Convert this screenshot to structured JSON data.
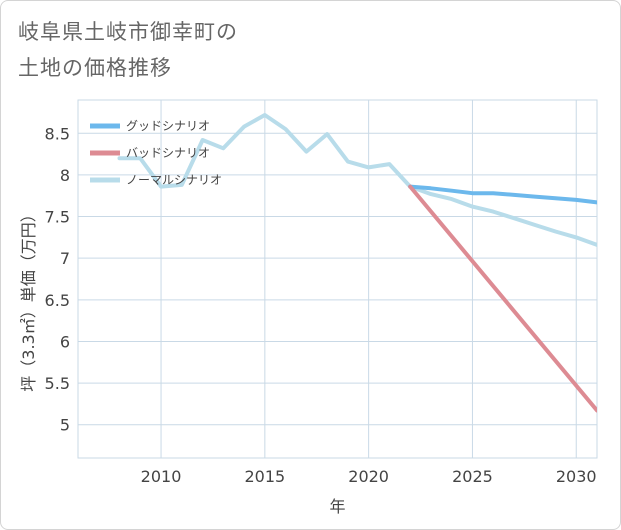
{
  "title_lines": [
    "岐阜県土岐市御幸町の",
    "土地の価格推移"
  ],
  "chart_data": {
    "type": "line",
    "xlabel": "年",
    "ylabel": "坪（3.3㎡）単価（万円）",
    "xlim": [
      2006,
      2031
    ],
    "ylim": [
      4.6,
      8.9
    ],
    "xticks": [
      2010,
      2015,
      2020,
      2025,
      2030
    ],
    "yticks": [
      5,
      5.5,
      6,
      6.5,
      7,
      7.5,
      8,
      8.5
    ],
    "grid": true,
    "legend_position": "top-left",
    "series": [
      {
        "name": "グッドシナリオ",
        "color": "#6cb8ec",
        "x": [
          2022,
          2023,
          2024,
          2025,
          2026,
          2027,
          2028,
          2029,
          2030,
          2031
        ],
        "y": [
          7.86,
          7.84,
          7.81,
          7.78,
          7.78,
          7.76,
          7.74,
          7.72,
          7.7,
          7.67
        ]
      },
      {
        "name": "バッドシナリオ",
        "color": "#dd8b93",
        "x": [
          2022,
          2031
        ],
        "y": [
          7.86,
          5.17
        ]
      },
      {
        "name": "ノーマルシナリオ",
        "color": "#b8dcea",
        "x": [
          2008,
          2009,
          2010,
          2011,
          2012,
          2013,
          2014,
          2015,
          2016,
          2017,
          2018,
          2019,
          2020,
          2021,
          2022,
          2023,
          2024,
          2025,
          2026,
          2027,
          2028,
          2029,
          2030,
          2031
        ],
        "y": [
          8.2,
          8.2,
          7.86,
          7.88,
          8.42,
          8.32,
          8.58,
          8.72,
          8.55,
          8.28,
          8.49,
          8.16,
          8.09,
          8.13,
          7.86,
          7.77,
          7.71,
          7.62,
          7.56,
          7.48,
          7.4,
          7.32,
          7.25,
          7.16
        ]
      }
    ]
  }
}
